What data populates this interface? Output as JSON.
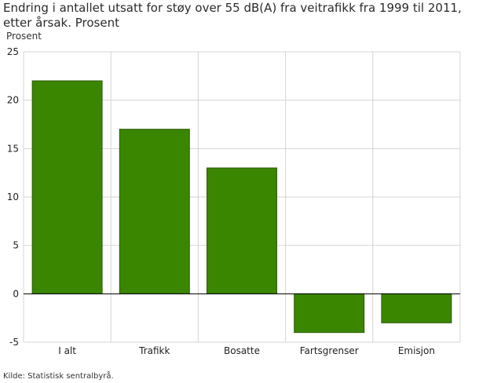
{
  "title": "Endring i antallet utsatt for støy over 55 dB(A) fra veitrafikk fra 1999 til 2011, etter årsak. Prosent",
  "source": "Kilde: Statistisk sentralbyrå.",
  "chart_data": {
    "type": "bar",
    "title": "Endring i antallet utsatt for støy over 55 dB(A) fra veitrafikk fra 1999 til 2011, etter årsak. Prosent",
    "ylabel": "Prosent",
    "xlabel": "",
    "categories": [
      "I alt",
      "Trafikk",
      "Bosatte",
      "Fartsgrenser",
      "Emisjon"
    ],
    "values": [
      22,
      17,
      13,
      -4,
      -3
    ],
    "ylim": [
      -5,
      25
    ],
    "yticks": [
      -5,
      0,
      5,
      10,
      15,
      20,
      25
    ],
    "grid": true,
    "bar_color": "#3a8600",
    "bar_stroke": "#2c5a00"
  }
}
